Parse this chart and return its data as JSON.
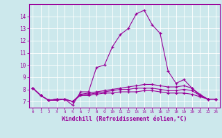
{
  "xlabel": "Windchill (Refroidissement éolien,°C)",
  "background_color": "#cce8ec",
  "line_color": "#990099",
  "xlim": [
    -0.5,
    23.5
  ],
  "ylim": [
    6.5,
    15.0
  ],
  "yticks": [
    7,
    8,
    9,
    10,
    11,
    12,
    13,
    14
  ],
  "xticks": [
    0,
    1,
    2,
    3,
    4,
    5,
    6,
    7,
    8,
    9,
    10,
    11,
    12,
    13,
    14,
    15,
    16,
    17,
    18,
    19,
    20,
    21,
    22,
    23
  ],
  "series": [
    [
      8.1,
      7.5,
      7.1,
      7.1,
      7.2,
      6.7,
      7.8,
      7.8,
      9.8,
      10.0,
      11.5,
      12.5,
      13.0,
      14.2,
      14.5,
      13.3,
      12.6,
      9.5,
      8.5,
      8.8,
      8.1,
      7.5,
      7.2,
      7.2
    ],
    [
      8.1,
      7.5,
      7.1,
      7.2,
      7.2,
      7.0,
      7.6,
      7.7,
      7.8,
      7.9,
      8.0,
      8.1,
      8.2,
      8.3,
      8.4,
      8.4,
      8.3,
      8.2,
      8.2,
      8.3,
      8.1,
      7.6,
      7.2,
      7.2
    ],
    [
      8.1,
      7.5,
      7.1,
      7.2,
      7.2,
      7.0,
      7.6,
      7.6,
      7.7,
      7.8,
      7.9,
      8.0,
      8.0,
      8.1,
      8.1,
      8.1,
      8.0,
      7.9,
      7.9,
      8.0,
      7.9,
      7.5,
      7.2,
      7.2
    ],
    [
      8.1,
      7.5,
      7.1,
      7.2,
      7.2,
      7.0,
      7.5,
      7.5,
      7.6,
      7.7,
      7.7,
      7.8,
      7.8,
      7.8,
      7.9,
      7.9,
      7.8,
      7.7,
      7.7,
      7.7,
      7.6,
      7.4,
      7.2,
      7.2
    ]
  ]
}
